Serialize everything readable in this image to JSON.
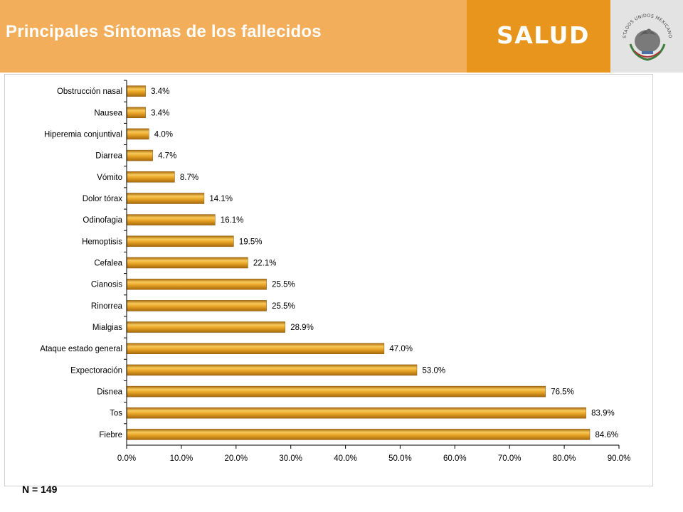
{
  "header": {
    "title": "Principales Síntomas de los fallecidos",
    "brand": "SALUD",
    "seal_text": "ESTADOS UNIDOS MEXICANOS",
    "colors": {
      "orange": "#f2ae5a",
      "dark_orange": "#e8951e",
      "seal_bg": "#e3e3e3"
    }
  },
  "footer": {
    "n_label": "N = 149"
  },
  "chart_data": {
    "type": "bar",
    "orientation": "horizontal",
    "title": "",
    "xlabel": "",
    "ylabel": "",
    "xlim": [
      0,
      90
    ],
    "x_ticks": [
      "0.0%",
      "10.0%",
      "20.0%",
      "30.0%",
      "40.0%",
      "50.0%",
      "60.0%",
      "70.0%",
      "80.0%",
      "90.0%"
    ],
    "grid": false,
    "legend": "none",
    "bar_color": "#e9a526",
    "categories": [
      "Obstrucción nasal",
      "Nausea",
      "Hiperemia  conjuntival",
      "Diarrea",
      "Vómito",
      "Dolor tórax",
      "Odinofagia",
      "Hemoptisis",
      "Cefalea",
      "Cianosis",
      "Rinorrea",
      "Mialgias",
      "Ataque estado general",
      "Expectoración",
      "Disnea",
      "Tos",
      "Fiebre"
    ],
    "values": [
      3.4,
      3.4,
      4.0,
      4.7,
      8.7,
      14.1,
      16.1,
      19.5,
      22.1,
      25.5,
      25.5,
      28.9,
      47.0,
      53.0,
      76.5,
      83.9,
      84.6
    ],
    "labels": [
      "3.4%",
      "3.4%",
      "4.0%",
      "4.7%",
      "8.7%",
      "14.1%",
      "16.1%",
      "19.5%",
      "22.1%",
      "25.5%",
      "25.5%",
      "28.9%",
      "47.0%",
      "53.0%",
      "76.5%",
      "83.9%",
      "84.6%"
    ]
  }
}
